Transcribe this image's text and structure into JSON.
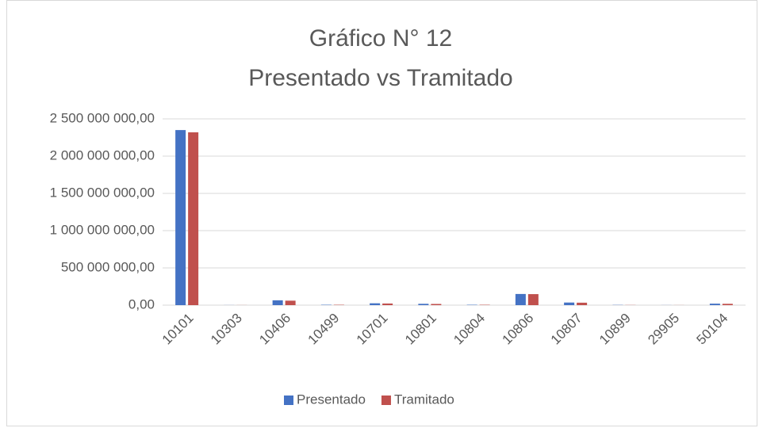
{
  "chart_data": {
    "type": "bar",
    "title": "Gráfico N° 12",
    "subtitle": "Presentado vs Tramitado",
    "categories": [
      "10101",
      "10303",
      "10406",
      "10499",
      "10701",
      "10801",
      "10804",
      "10806",
      "10807",
      "10899",
      "29905",
      "50104"
    ],
    "series": [
      {
        "name": "Presentado",
        "color": "#4472c4",
        "values": [
          2350000000,
          1000000,
          65000000,
          5000000,
          25000000,
          18000000,
          5000000,
          150000000,
          35000000,
          3000000,
          1000000,
          20000000
        ]
      },
      {
        "name": "Tramitado",
        "color": "#c0504d",
        "values": [
          2320000000,
          1000000,
          60000000,
          5000000,
          22000000,
          16000000,
          5000000,
          148000000,
          33000000,
          2000000,
          1000000,
          18000000
        ]
      }
    ],
    "ylim": [
      0,
      2500000000
    ],
    "yticks": [
      {
        "value": 0,
        "label": "0,00"
      },
      {
        "value": 500000000,
        "label": "500 000 000,00"
      },
      {
        "value": 1000000000,
        "label": "1 000 000 000,00"
      },
      {
        "value": 1500000000,
        "label": "1 500 000 000,00"
      },
      {
        "value": 2000000000,
        "label": "2 000 000 000,00"
      },
      {
        "value": 2500000000,
        "label": "2 500 000 000,00"
      }
    ],
    "grid": true,
    "legend": "bottom"
  }
}
